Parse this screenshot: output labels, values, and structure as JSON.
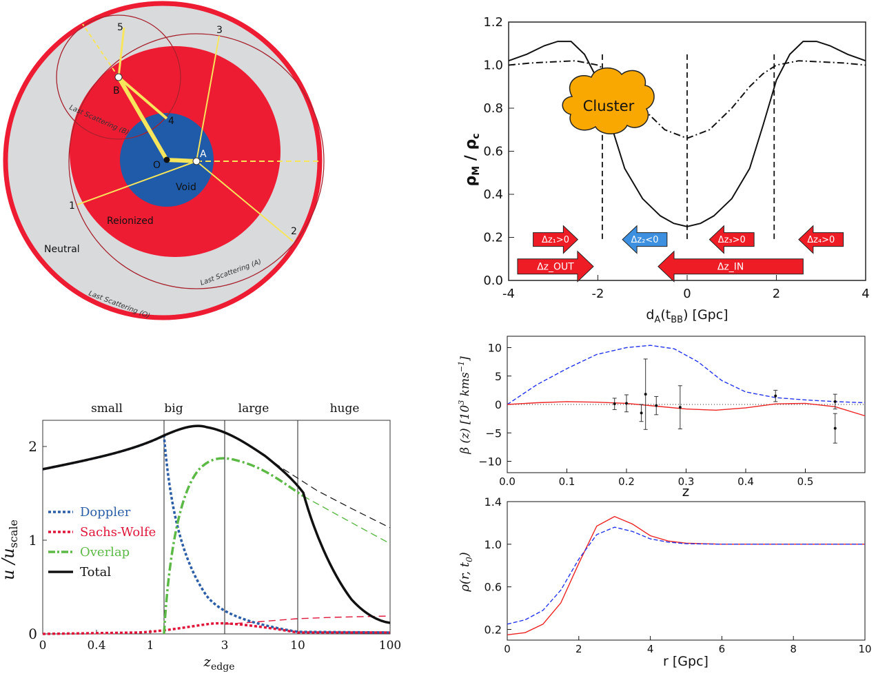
{
  "diagram": {
    "labels": {
      "void": "Void",
      "reionized": "Reionized",
      "neutral": "Neutral",
      "ls_o": "Last Scattering (O)",
      "ls_a": "Last Scattering (A)",
      "ls_b": "Last Scattering (B)",
      "o": "O",
      "a": "A",
      "b": "B",
      "n1": "1",
      "n2": "2",
      "n3": "3",
      "n4": "4",
      "n5": "5"
    },
    "colors": {
      "red": "#ee1c32",
      "grey": "#d9dadc",
      "blue": "#1f5ba8",
      "yellow": "#f7e55c",
      "ring": "#a8222e"
    }
  },
  "chart_data": [
    {
      "type": "line",
      "ylabel": "ρ_M / ρ_c",
      "xlabel": "d_A(t_BB) [Gpc]",
      "xlim": [
        -4,
        4
      ],
      "ylim": [
        0.0,
        1.2
      ],
      "xticks": [
        "-4",
        "-2",
        "0",
        "2",
        "4"
      ],
      "yticks": [
        "0.0",
        "0.2",
        "0.4",
        "0.6",
        "0.8",
        "1.0",
        "1.2"
      ],
      "series": [
        {
          "style": "solid",
          "x": [
            -4,
            -3.6,
            -3.2,
            -2.9,
            -2.6,
            -2.3,
            -2.0,
            -1.7,
            -1.4,
            -1.0,
            -0.6,
            -0.3,
            0,
            0.3,
            0.6,
            1.0,
            1.4,
            1.7,
            2.0,
            2.3,
            2.6,
            2.9,
            3.2,
            3.6,
            4
          ],
          "y": [
            1.02,
            1.05,
            1.09,
            1.11,
            1.11,
            1.05,
            0.93,
            0.72,
            0.52,
            0.38,
            0.3,
            0.265,
            0.25,
            0.265,
            0.3,
            0.38,
            0.52,
            0.72,
            0.93,
            1.05,
            1.11,
            1.11,
            1.09,
            1.05,
            1.02
          ]
        },
        {
          "style": "dashdot",
          "x": [
            -4,
            -3.5,
            -3.0,
            -2.5,
            -2.0,
            -1.7,
            -1.4,
            -1.0,
            -0.5,
            0,
            0.5,
            1.0,
            1.4,
            1.7,
            2.0,
            2.5,
            3.0,
            3.5,
            4
          ],
          "y": [
            1.0,
            1.01,
            1.015,
            1.02,
            1.0,
            0.96,
            0.9,
            0.8,
            0.7,
            0.66,
            0.7,
            0.8,
            0.9,
            0.96,
            1.0,
            1.02,
            1.015,
            1.01,
            1.0
          ]
        }
      ],
      "vlines": [
        -1.9,
        0,
        1.95
      ],
      "annotations": {
        "cluster": "Cluster",
        "arrow1": "Δz₁>0",
        "arrow2": "Δz₂<0",
        "arrow3": "Δz₃>0",
        "arrow4": "Δz₄>0",
        "arrow_out": "Δz_OUT",
        "arrow_in": "Δz_IN"
      },
      "colors": {
        "arrow_red": "#ee1c24",
        "arrow_blue": "#3d8fe0",
        "cluster": "#f8a800"
      }
    },
    {
      "type": "line",
      "xlabel": "z_edge",
      "ylabel": "u / u_scale",
      "xticks": [
        "0",
        "0.4",
        "1",
        "3",
        "10",
        "100"
      ],
      "yticks": [
        "0",
        "1",
        "2"
      ],
      "regions": [
        "small",
        "big",
        "large",
        "huge"
      ],
      "legend": [
        "Doppler",
        "Sachs-Wolfe",
        "Overlap",
        "Total"
      ],
      "legend_position": "center-left",
      "series": [
        {
          "name": "Doppler",
          "color": "#2b5ea7"
        },
        {
          "name": "Sachs-Wolfe",
          "color": "#e0153a"
        },
        {
          "name": "Overlap",
          "color": "#5cb946"
        },
        {
          "name": "Total",
          "color": "#111111"
        }
      ]
    },
    {
      "type": "line",
      "xlabel": "z",
      "ylabel": "β (z) [10³ kms⁻¹]",
      "xlim": [
        0.0,
        0.6
      ],
      "ylim": [
        -12,
        12
      ],
      "xticks": [
        "0.0",
        "0.1",
        "0.2",
        "0.3",
        "0.4",
        "0.5"
      ],
      "yticks": [
        "10",
        "5",
        "0",
        "−5",
        "−10"
      ],
      "series": [
        {
          "style": "dashed",
          "color": "#2233ee",
          "x": [
            0,
            0.05,
            0.1,
            0.15,
            0.2,
            0.24,
            0.28,
            0.32,
            0.36,
            0.4,
            0.45,
            0.5,
            0.55,
            0.6
          ],
          "y": [
            0,
            3.5,
            6.3,
            8.8,
            10.0,
            10.4,
            9.8,
            7.5,
            4.2,
            2.2,
            1.2,
            0.8,
            0.5,
            0.3
          ]
        },
        {
          "style": "solid",
          "color": "#ee2222",
          "x": [
            0,
            0.05,
            0.1,
            0.15,
            0.2,
            0.25,
            0.3,
            0.35,
            0.4,
            0.45,
            0.5,
            0.55,
            0.6
          ],
          "y": [
            0,
            0.3,
            0.5,
            0.4,
            0.2,
            -0.3,
            -0.8,
            -1.0,
            -0.6,
            0.1,
            0.2,
            -0.4,
            -2.0
          ]
        }
      ],
      "points": [
        {
          "x": 0.18,
          "y": 0.1,
          "err": 1.0
        },
        {
          "x": 0.2,
          "y": 0.2,
          "err": 1.5
        },
        {
          "x": 0.225,
          "y": -1.5,
          "err": 1.5
        },
        {
          "x": 0.232,
          "y": 1.8,
          "err": 6.2
        },
        {
          "x": 0.25,
          "y": -0.2,
          "err": 1.6
        },
        {
          "x": 0.29,
          "y": -0.5,
          "err": 3.8
        },
        {
          "x": 0.45,
          "y": 1.5,
          "err": 1.0
        },
        {
          "x": 0.55,
          "y": 0.5,
          "err": 1.3
        },
        {
          "x": 0.55,
          "y": -4.2,
          "err": 2.6
        }
      ]
    },
    {
      "type": "line",
      "xlabel": "r [Gpc]",
      "ylabel": "ρ(r, t₀)",
      "xlim": [
        0,
        10
      ],
      "ylim": [
        0.1,
        1.4
      ],
      "xticks": [
        "0",
        "2",
        "4",
        "6",
        "8",
        "10"
      ],
      "yticks": [
        "0.2",
        "0.6",
        "1.0",
        "1.4"
      ],
      "series": [
        {
          "style": "solid",
          "color": "#ee2222",
          "x": [
            0,
            0.5,
            1.0,
            1.5,
            2.0,
            2.5,
            3.0,
            3.5,
            4.0,
            4.5,
            5.0,
            6.0,
            8.0,
            10.0
          ],
          "y": [
            0.15,
            0.17,
            0.25,
            0.45,
            0.82,
            1.17,
            1.26,
            1.19,
            1.08,
            1.03,
            1.01,
            1.0,
            1.0,
            1.0
          ]
        },
        {
          "style": "dashed",
          "color": "#2233ee",
          "x": [
            0,
            0.5,
            1.0,
            1.5,
            2.0,
            2.5,
            3.0,
            3.5,
            4.0,
            4.5,
            5.0,
            6.0,
            8.0,
            10.0
          ],
          "y": [
            0.25,
            0.29,
            0.38,
            0.57,
            0.86,
            1.09,
            1.16,
            1.12,
            1.05,
            1.02,
            1.005,
            1.0,
            1.0,
            1.0
          ]
        }
      ]
    }
  ]
}
